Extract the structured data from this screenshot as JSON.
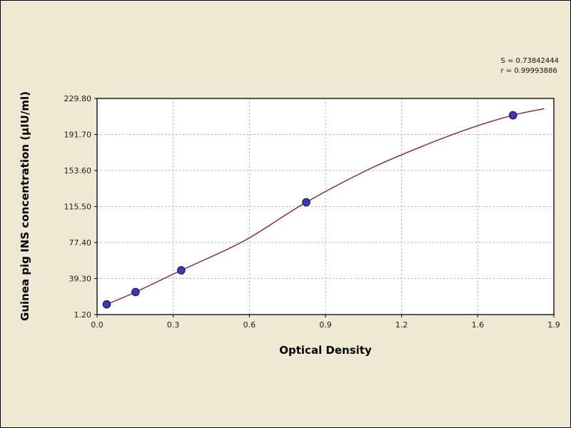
{
  "colors": {
    "background": "#efe9d4",
    "plot_bg": "#ffffff",
    "grid": "#a9a9a9",
    "axis": "#000000",
    "tick_text": "#1c1c1c",
    "curve": "#8b2433",
    "point_fill": "#4336b4",
    "point_stroke": "#1a1266"
  },
  "chart_data": {
    "type": "line",
    "title": "",
    "xlabel": "Optical Density",
    "ylabel": "Guinea pig INS concentration (μIU/ml)",
    "xlim": [
      0.0,
      1.9
    ],
    "ylim": [
      1.2,
      229.8
    ],
    "x_tick_labels": [
      "0.0",
      "0.3",
      "0.6",
      "0.9",
      "1.2",
      "1.6",
      "1.9"
    ],
    "y_tick_labels": [
      "1.20",
      "39.30",
      "77.40",
      "115.50",
      "153.60",
      "191.70",
      "229.80"
    ],
    "grid": "dashed both axes",
    "legend": "none",
    "annotations": [
      "S = 0.73842444",
      "r = 0.99993886"
    ],
    "series": [
      {
        "name": "fitted standard curve",
        "type": "line",
        "points": [
          [
            0.04,
            12
          ],
          [
            0.16,
            25
          ],
          [
            0.35,
            48
          ],
          [
            0.61,
            79
          ],
          [
            0.87,
            120
          ],
          [
            1.14,
            156
          ],
          [
            1.38,
            182
          ],
          [
            1.56,
            199
          ],
          [
            1.73,
            212
          ],
          [
            1.86,
            219
          ]
        ]
      },
      {
        "name": "standard data points",
        "type": "scatter",
        "points": [
          [
            0.04,
            12
          ],
          [
            0.16,
            25
          ],
          [
            0.35,
            48
          ],
          [
            0.87,
            120
          ],
          [
            1.73,
            212
          ]
        ]
      }
    ]
  }
}
